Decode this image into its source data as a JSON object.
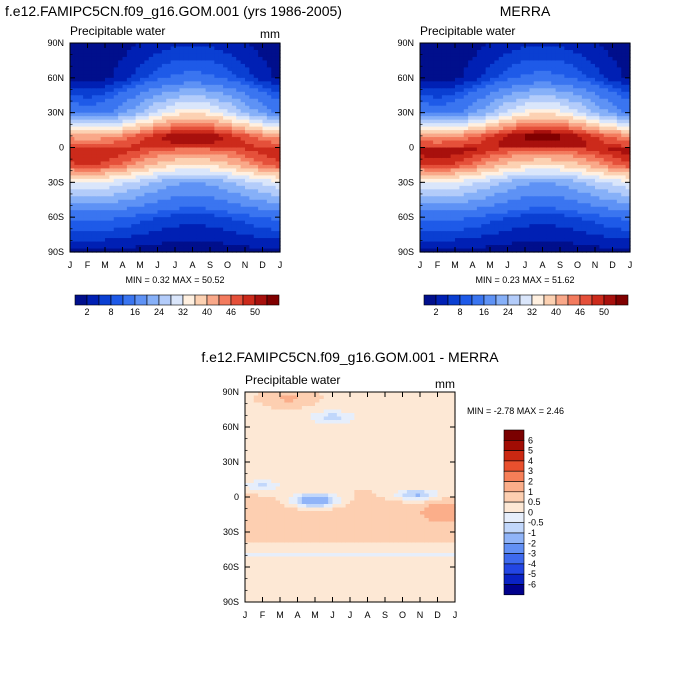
{
  "chart_data": [
    {
      "type": "heatmap",
      "id": "model",
      "title": "f.e12.FAMIPC5CN.f09_g16.GOM.001 (yrs 1986-2005)",
      "subtitle": "Precipitable water",
      "units": "mm",
      "x_ticks": [
        "J",
        "F",
        "M",
        "A",
        "M",
        "J",
        "J",
        "A",
        "S",
        "O",
        "N",
        "D",
        "J"
      ],
      "y_ticks": [
        "90N",
        "60N",
        "30N",
        "0",
        "30S",
        "60S",
        "90S"
      ],
      "stats": "MIN =   0.32 MAX =  50.52",
      "colorbar_labels": [
        "2",
        "8",
        "16",
        "24",
        "32",
        "40",
        "46",
        "50"
      ],
      "field": {
        "lats": [
          90,
          60,
          30,
          10,
          0,
          -15,
          -30,
          -60,
          -90
        ],
        "annual_mean": [
          2,
          5,
          20,
          42,
          44,
          38,
          22,
          7,
          1
        ],
        "seasonal_amplitude": [
          1.5,
          4,
          10,
          5,
          1.5,
          6,
          6,
          2,
          0.5
        ],
        "phase_peak_month": 7,
        "min": 0.32,
        "max": 50.52
      }
    },
    {
      "type": "heatmap",
      "id": "obs",
      "title": "MERRA",
      "subtitle": "Precipitable water",
      "units": "",
      "x_ticks": [
        "J",
        "F",
        "M",
        "A",
        "M",
        "J",
        "J",
        "A",
        "S",
        "O",
        "N",
        "D",
        "J"
      ],
      "y_ticks": [
        "90N",
        "60N",
        "30N",
        "0",
        "30S",
        "60S",
        "90S"
      ],
      "stats": "MIN =   0.23 MAX =  51.62",
      "colorbar_labels": [
        "2",
        "8",
        "16",
        "24",
        "32",
        "40",
        "46",
        "50"
      ],
      "field": {
        "lats": [
          90,
          60,
          30,
          10,
          0,
          -15,
          -30,
          -60,
          -90
        ],
        "annual_mean": [
          2,
          5,
          20,
          43,
          45,
          38,
          22,
          7,
          1
        ],
        "seasonal_amplitude": [
          1.5,
          4,
          10,
          5,
          1.5,
          6,
          6,
          2,
          0.5
        ],
        "phase_peak_month": 7,
        "min": 0.23,
        "max": 51.62
      }
    },
    {
      "type": "heatmap",
      "id": "diff",
      "title": "f.e12.FAMIPC5CN.f09_g16.GOM.001 - MERRA",
      "subtitle": "Precipitable water",
      "units": "mm",
      "x_ticks": [
        "J",
        "F",
        "M",
        "A",
        "M",
        "J",
        "J",
        "A",
        "S",
        "O",
        "N",
        "D",
        "J"
      ],
      "y_ticks": [
        "90N",
        "60N",
        "30N",
        "0",
        "30S",
        "60S",
        "90S"
      ],
      "stats": "MIN =  -2.78 MAX =   2.46",
      "colorbar_labels": [
        "6",
        "5",
        "4",
        "3",
        "2",
        "1",
        "0.5",
        "0",
        "-0.5",
        "-1",
        "-2",
        "-3",
        "-4",
        "-5",
        "-6"
      ],
      "field": {
        "min": -2.78,
        "max": 2.46
      }
    }
  ],
  "colors": {
    "seq_palette": [
      "#000f8c",
      "#0020b4",
      "#0a3fd2",
      "#1e5ae8",
      "#3a75f0",
      "#5e92f5",
      "#86b0f8",
      "#b3ccfa",
      "#dae6fb",
      "#fff0e0",
      "#fcd1b2",
      "#f9a889",
      "#f37b5e",
      "#e5503a",
      "#cc2a1b",
      "#a8100d",
      "#800000"
    ],
    "seq_levels": [
      2,
      4,
      6,
      8,
      12,
      16,
      20,
      24,
      28,
      32,
      36,
      40,
      43,
      46,
      48,
      50
    ],
    "div_palette": [
      "#00008c",
      "#0a22c4",
      "#2346e4",
      "#3e6aee",
      "#6290f5",
      "#90b4f8",
      "#c1d7fb",
      "#e6eefb",
      "#fde8d5",
      "#fdcfb1",
      "#fbae8a",
      "#f67f58",
      "#e9502e",
      "#cb2812",
      "#a10c04",
      "#7a0000"
    ],
    "div_levels": [
      -6,
      -5,
      -4,
      -3,
      -2,
      -1,
      -0.5,
      0,
      0.5,
      1,
      2,
      3,
      4,
      5,
      6
    ]
  }
}
